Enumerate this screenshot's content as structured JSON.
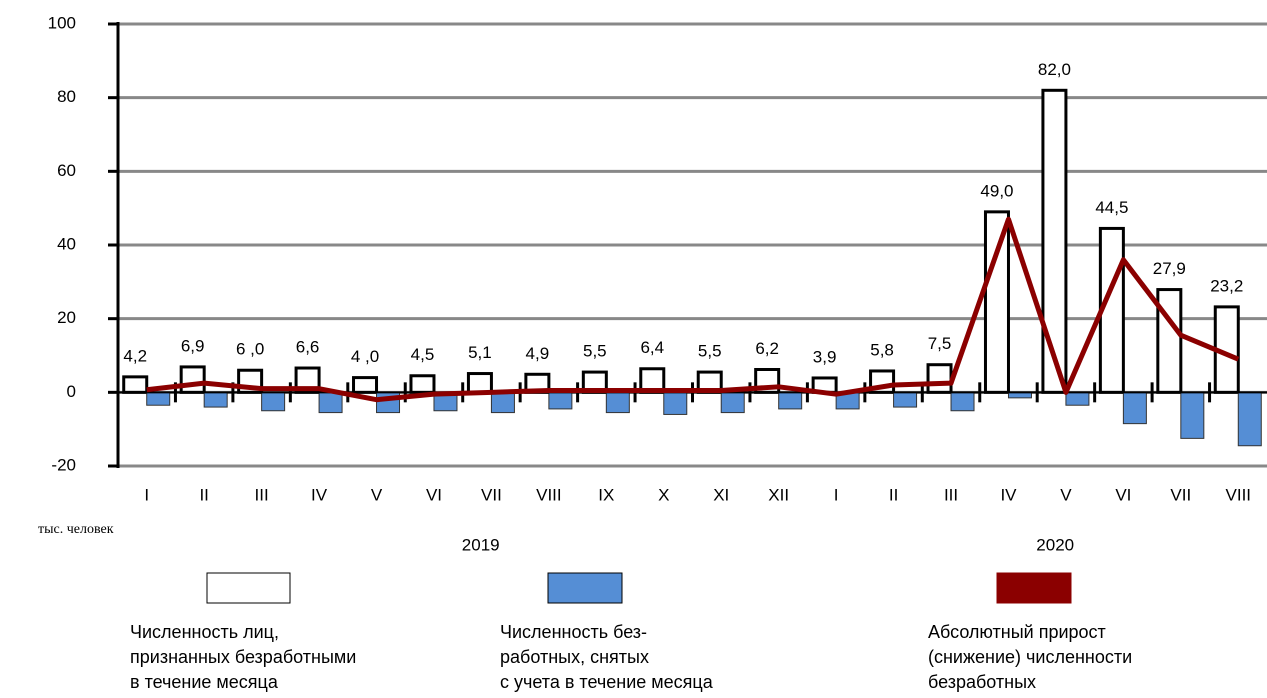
{
  "chart_data": {
    "type": "bar_line",
    "categories": [
      "I",
      "II",
      "III",
      "IV",
      "V",
      "VI",
      "VII",
      "VIII",
      "IX",
      "X",
      "XI",
      "XII",
      "I",
      "II",
      "III",
      "IV",
      "V",
      "VI",
      "VII",
      "VIII"
    ],
    "x_groups": [
      "2019",
      "2020"
    ],
    "unit_label": "тыс. человек",
    "series": [
      {
        "name": "Численность лиц,\nпризнанных безработными\nв течение месяца",
        "type": "bar",
        "color": "#ffffff",
        "values": [
          4.2,
          6.9,
          6.0,
          6.6,
          4.0,
          4.5,
          5.1,
          4.9,
          5.5,
          6.4,
          5.5,
          6.2,
          3.9,
          5.8,
          7.5,
          49.0,
          82.0,
          44.5,
          27.9,
          23.2
        ],
        "value_labels": [
          "4,2",
          "6,9",
          "6 ,0",
          "6,6",
          "4 ,0",
          "4,5",
          "5,1",
          "4,9",
          "5,5",
          "6,4",
          "5,5",
          "6,2",
          "3,9",
          "5,8",
          "7,5",
          "49,0",
          "82,0",
          "44,5",
          "27,9",
          "23,2"
        ]
      },
      {
        "name": "Численность без-\nработных, снятых\nс учета в течение месяца",
        "type": "bar",
        "color": "#558ed5",
        "values": [
          -3.5,
          -4,
          -5,
          -5.5,
          -5.5,
          -5,
          -5.5,
          -4.5,
          -5.5,
          -6,
          -5.5,
          -4.5,
          -4.5,
          -4,
          -5,
          -1.5,
          -3.5,
          -8.5,
          -12.5,
          -14.5
        ]
      },
      {
        "name": "Абсолютный прирост\n(снижение) численности\nбезработных",
        "type": "line",
        "color": "#8b0000",
        "values": [
          0.7,
          2.5,
          1,
          1,
          -2,
          -0.5,
          0,
          0.5,
          0.5,
          0.5,
          0.5,
          1.5,
          -0.5,
          2,
          2.5,
          47,
          0,
          36,
          15.5,
          9
        ]
      }
    ],
    "ylim": [
      -20,
      100
    ],
    "yticks": [
      -20,
      0,
      20,
      40,
      60,
      80,
      100
    ],
    "grid": true
  }
}
